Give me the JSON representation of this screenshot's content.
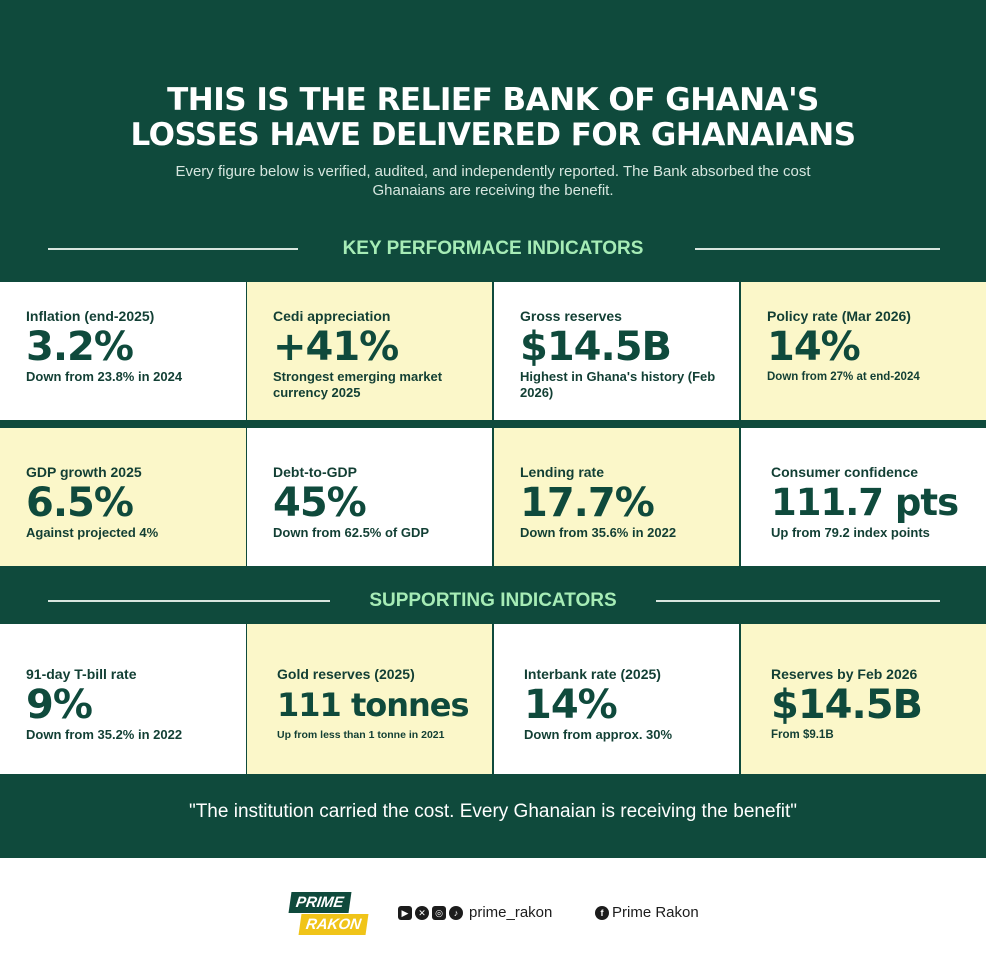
{
  "title": {
    "line1": "THIS IS THE RELIEF BANK OF GHANA'S",
    "line2": "LOSSES HAVE DELIVERED FOR GHANAIANS"
  },
  "subtitle": {
    "line1": "Every figure below is verified, audited, and independently reported. The Bank absorbed the cost",
    "line2": "Ghanaians are receiving the benefit."
  },
  "key_section": {
    "heading": "KEY PERFORMACE INDICATORS",
    "cards": [
      {
        "label": "Inflation (end-2025)",
        "value": "3.2%",
        "note": "Down from 23.8% in 2024"
      },
      {
        "label": "Cedi appreciation",
        "value": "+41%",
        "note": "Strongest emerging market currency 2025"
      },
      {
        "label": "Gross reserves",
        "value": "$14.5B",
        "note": "Highest in Ghana's history (Feb 2026)"
      },
      {
        "label": "Policy rate (Mar 2026)",
        "value": "14%",
        "note": "Down from 27% at end-2024"
      },
      {
        "label": "GDP growth 2025",
        "value": "6.5%",
        "note": "Against projected 4%"
      },
      {
        "label": "Debt-to-GDP",
        "value": "45%",
        "note": "Down from 62.5% of GDP"
      },
      {
        "label": "Lending rate",
        "value": "17.7%",
        "note": "Down from 35.6% in 2022"
      },
      {
        "label": "Consumer confidence",
        "value": "111.7 pts",
        "note": "Up from 79.2 index points"
      }
    ]
  },
  "supporting_section": {
    "heading": "SUPPORTING INDICATORS",
    "cards": [
      {
        "label": "91-day T-bill rate",
        "value": "9%",
        "note": "Down from 35.2% in 2022"
      },
      {
        "label": "Gold reserves (2025)",
        "value": "111 tonnes",
        "note": "Up from less than 1 tonne in 2021"
      },
      {
        "label": "Interbank rate (2025)",
        "value": "14%",
        "note": "Down from approx. 30%"
      },
      {
        "label": "Reserves by Feb 2026",
        "value": "$14.5B",
        "note": "From $9.1B"
      }
    ]
  },
  "quote": "\"The institution carried the cost. Every Ghanaian is receiving the benefit\"",
  "footer": {
    "logo_line1": "PRIME",
    "logo_line2": "RAKON",
    "social_icons": [
      "youtube-icon",
      "x-icon",
      "instagram-icon",
      "tiktok-icon"
    ],
    "handle": "prime_rakon",
    "facebook_name": "Prime Rakon"
  },
  "colors": {
    "panel": "#0f4a3c",
    "cream": "#fbf7c9",
    "section_heading": "#a6ecb6",
    "logo_yellow": "#f0c419"
  }
}
